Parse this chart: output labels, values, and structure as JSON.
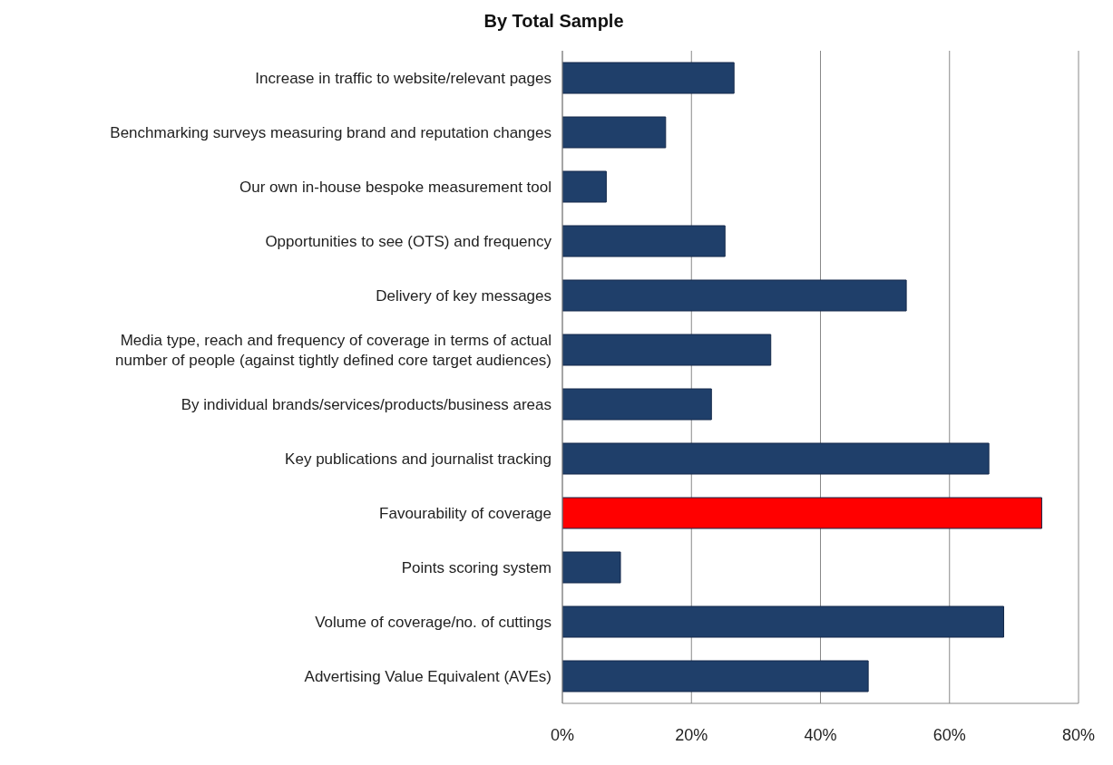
{
  "chart_data": {
    "type": "bar",
    "orientation": "horizontal",
    "title": "By Total Sample",
    "categories": [
      "Increase in traffic to website/relevant pages",
      "Benchmarking surveys measuring brand and reputation changes",
      "Our own in-house bespoke measurement tool",
      "Opportunities to see (OTS) and frequency",
      "Delivery of key messages",
      "Media type, reach and frequency of coverage in terms of actual number of people (against tightly defined core target audiences)",
      "By individual brands/services/products/business areas",
      "Key publications and journalist tracking",
      "Favourability of coverage",
      "Points scoring system",
      "Volume of coverage/no. of cuttings",
      "Advertising Value Equivalent (AVEs)"
    ],
    "values": [
      26.6,
      16.0,
      6.8,
      25.2,
      53.3,
      32.3,
      23.1,
      66.1,
      74.3,
      9.0,
      68.4,
      47.4
    ],
    "colors": [
      "#1f3f6a",
      "#1f3f6a",
      "#1f3f6a",
      "#1f3f6a",
      "#1f3f6a",
      "#1f3f6a",
      "#1f3f6a",
      "#1f3f6a",
      "#ff0000",
      "#1f3f6a",
      "#1f3f6a",
      "#1f3f6a"
    ],
    "xlim": [
      0,
      80
    ],
    "xticks": [
      {
        "value": 0,
        "label": "0%"
      },
      {
        "value": 20,
        "label": "20%"
      },
      {
        "value": 40,
        "label": "40%"
      },
      {
        "value": 60,
        "label": "60%"
      },
      {
        "value": 80,
        "label": "80%"
      }
    ],
    "grid": "x"
  }
}
